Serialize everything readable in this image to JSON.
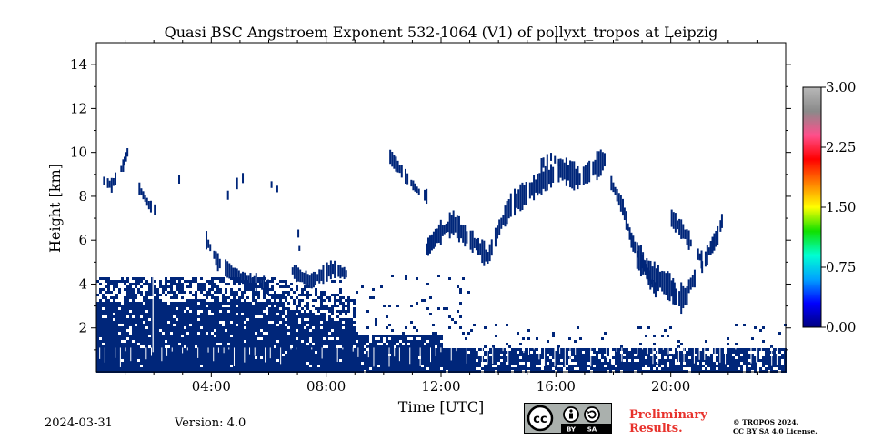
{
  "chart_data": {
    "type": "heatmap",
    "title": "Quasi BSC Angstroem Exponent 532-1064 (V1) of pollyxt_tropos at Leipzig",
    "xlabel": "Time [UTC]",
    "ylabel": "Height [km]",
    "xlim": [
      0,
      24
    ],
    "ylim": [
      0,
      15
    ],
    "x_ticks": [
      4,
      8,
      12,
      16,
      20
    ],
    "x_tick_labels": [
      "04:00",
      "08:00",
      "12:00",
      "16:00",
      "20:00"
    ],
    "y_ticks": [
      2,
      4,
      6,
      8,
      10,
      12,
      14
    ],
    "y_tick_labels": [
      "2",
      "4",
      "6",
      "8",
      "10",
      "12",
      "14"
    ],
    "colorbar": {
      "range": [
        0,
        3
      ],
      "ticks": [
        0.0,
        0.75,
        1.5,
        2.25,
        3.0
      ],
      "tick_labels": [
        "0.00",
        "0.75",
        "1.50",
        "2.25",
        "3.00"
      ],
      "colors": [
        "#00007f",
        "#0000ff",
        "#00a2ff",
        "#00ffd2",
        "#10e000",
        "#ffff00",
        "#ff8000",
        "#ff0000",
        "#ff4f8c",
        "#8a8a8a",
        "#b8b8b8"
      ]
    },
    "dominant_value": 0.05,
    "dominant_color": "#00267a",
    "regions": [
      {
        "name": "boundary-layer-low",
        "time_range": [
          0,
          24
        ],
        "height_range": [
          0,
          1.1
        ],
        "value": 0.05
      },
      {
        "name": "boundary-layer-dense-morning",
        "time_range": [
          0,
          9
        ],
        "height_range": [
          0,
          4.5
        ],
        "value": 0.05
      },
      {
        "name": "residual-layer-sparse",
        "time_range": [
          8,
          13
        ],
        "height_range": [
          1,
          4.5
        ],
        "value": 0.05
      },
      {
        "name": "aerosol-layer-04-06",
        "time_range": [
          3.5,
          6
        ],
        "height_range": [
          3.5,
          6
        ],
        "value": 0.05
      },
      {
        "name": "aerosol-layer-07-09",
        "time_range": [
          6.8,
          8.9
        ],
        "height_range": [
          3.3,
          5
        ],
        "value": 0.05
      },
      {
        "name": "elevated-layer-midday",
        "time_range": [
          10,
          14.5
        ],
        "height_range": [
          5,
          10
        ],
        "value": 0.05
      },
      {
        "name": "elevated-layer-afternoon",
        "time_range": [
          14,
          18
        ],
        "height_range": [
          7,
          10
        ],
        "value": 0.05
      },
      {
        "name": "descending-layer-evening",
        "time_range": [
          18,
          21.8
        ],
        "height_range": [
          2.8,
          9
        ],
        "value": 0.05
      },
      {
        "name": "cirrus-early",
        "time_range": [
          0,
          3
        ],
        "height_range": [
          7,
          10.5
        ],
        "value": 0.05
      }
    ]
  },
  "footer": {
    "date": "2024-03-31",
    "version": "Version: 4.0",
    "preliminary_line1": "Preliminary",
    "preliminary_line2": "Results.",
    "copyright_line1": "© TROPOS 2024.",
    "copyright_line2": "CC BY SA 4.0 License.",
    "cc_label": "cc",
    "by_label": "BY",
    "sa_label": "SA"
  }
}
